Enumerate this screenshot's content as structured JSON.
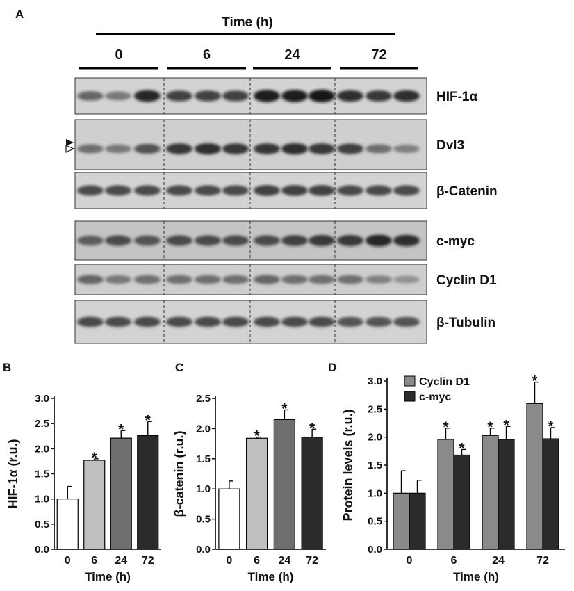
{
  "panel_a": {
    "letter": "A",
    "time_title": "Time (h)",
    "time_groups": [
      "0",
      "6",
      "24",
      "72"
    ],
    "blots": [
      {
        "label": "HIF-1α",
        "intensity": [
          [
            0.55,
            0.45,
            0.9
          ],
          [
            0.75,
            0.75,
            0.75
          ],
          [
            0.95,
            0.95,
            1.0
          ],
          [
            0.85,
            0.8,
            0.85
          ]
        ]
      },
      {
        "label": "Dvl3",
        "intensity": [
          [
            0.5,
            0.45,
            0.65
          ],
          [
            0.8,
            0.85,
            0.8
          ],
          [
            0.8,
            0.85,
            0.8
          ],
          [
            0.75,
            0.5,
            0.4
          ]
        ]
      },
      {
        "label": "β-Catenin",
        "intensity": [
          [
            0.7,
            0.7,
            0.7
          ],
          [
            0.7,
            0.7,
            0.7
          ],
          [
            0.75,
            0.75,
            0.75
          ],
          [
            0.7,
            0.7,
            0.7
          ]
        ]
      },
      {
        "label": "c-myc",
        "intensity": [
          [
            0.6,
            0.7,
            0.65
          ],
          [
            0.7,
            0.7,
            0.7
          ],
          [
            0.7,
            0.75,
            0.8
          ],
          [
            0.8,
            0.9,
            0.85
          ]
        ]
      },
      {
        "label": "Cyclin D1",
        "intensity": [
          [
            0.55,
            0.45,
            0.5
          ],
          [
            0.5,
            0.5,
            0.5
          ],
          [
            0.55,
            0.5,
            0.5
          ],
          [
            0.5,
            0.4,
            0.3
          ]
        ]
      },
      {
        "label": "β-Tubulin",
        "intensity": [
          [
            0.7,
            0.7,
            0.7
          ],
          [
            0.7,
            0.7,
            0.7
          ],
          [
            0.7,
            0.7,
            0.7
          ],
          [
            0.65,
            0.65,
            0.65
          ]
        ]
      }
    ]
  },
  "colors": {
    "white": "#ffffff",
    "light": "#bfbfbf",
    "mid": "#6f6f6f",
    "dark": "#2b2b2b",
    "cyclin": "#8a8a8a",
    "myc": "#2b2b2b"
  },
  "chart_data": [
    {
      "panel": "B",
      "type": "bar",
      "categories": [
        "0",
        "6",
        "24",
        "72"
      ],
      "values": [
        1.0,
        1.77,
        2.21,
        2.26
      ],
      "errors": [
        0.25,
        0.03,
        0.15,
        0.28
      ],
      "significant": [
        false,
        true,
        true,
        true
      ],
      "xlabel": "Time (h)",
      "ylabel": "HIF-1α (r.u.)",
      "ylim": [
        0,
        3.0
      ],
      "yticks": [
        "0.0",
        "0.5",
        "1.0",
        "1.5",
        "2.0",
        "2.5",
        "3.0"
      ],
      "bar_colors": [
        "#ffffff",
        "#bfbfbf",
        "#6f6f6f",
        "#2b2b2b"
      ],
      "grid": false
    },
    {
      "panel": "C",
      "type": "bar",
      "categories": [
        "0",
        "6",
        "24",
        "72"
      ],
      "values": [
        1.0,
        1.84,
        2.15,
        1.86
      ],
      "errors": [
        0.13,
        0.02,
        0.16,
        0.13
      ],
      "significant": [
        false,
        true,
        true,
        true
      ],
      "xlabel": "Time (h)",
      "ylabel": "β-catenin (r.u.)",
      "ylim": [
        0,
        2.5
      ],
      "yticks": [
        "0.0",
        "0.5",
        "1.0",
        "1.5",
        "2.0",
        "2.5"
      ],
      "bar_colors": [
        "#ffffff",
        "#bfbfbf",
        "#6f6f6f",
        "#2b2b2b"
      ],
      "grid": false
    },
    {
      "panel": "D",
      "type": "bar",
      "categories": [
        "0",
        "6",
        "24",
        "72"
      ],
      "series": [
        {
          "name": "Cyclin D1",
          "values": [
            1.0,
            1.96,
            2.03,
            2.6
          ],
          "errors": [
            0.4,
            0.2,
            0.13,
            0.38
          ],
          "significant": [
            false,
            true,
            true,
            true
          ]
        },
        {
          "name": "c-myc",
          "values": [
            1.0,
            1.68,
            1.96,
            1.97
          ],
          "errors": [
            0.23,
            0.1,
            0.23,
            0.2
          ],
          "significant": [
            false,
            true,
            true,
            true
          ]
        }
      ],
      "xlabel": "Time (h)",
      "ylabel": "Protein levels (r.u.)",
      "ylim": [
        0,
        3.0
      ],
      "yticks": [
        "0.0",
        "0.5",
        "1.0",
        "1.5",
        "2.0",
        "2.5",
        "3.0"
      ],
      "legend": "top-left",
      "grid": false
    }
  ]
}
